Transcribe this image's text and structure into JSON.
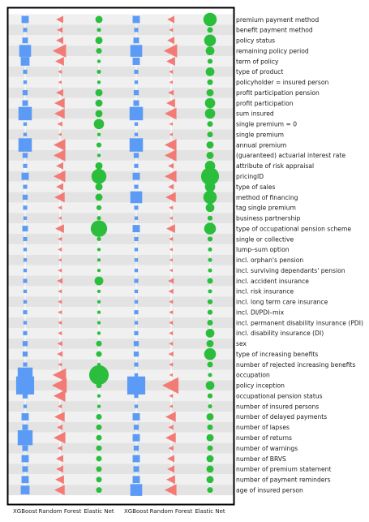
{
  "chart_data": {
    "type": "scatter",
    "title": "",
    "xlabel": "",
    "ylabel": "",
    "columns": [
      "XGBoost",
      "Random Forest",
      "Elastic Net",
      "XGBoost",
      "Random Forest",
      "Elastic Net"
    ],
    "column_colors": [
      "#5b9bf5",
      "#f27b76",
      "#2bbd3c",
      "#5b9bf5",
      "#f27b76",
      "#2bbd3c"
    ],
    "column_markers": [
      "square",
      "triangle-left",
      "circle",
      "square",
      "triangle-left",
      "circle"
    ],
    "value_scale": "relative importance, 0-10 (marker size)",
    "features": [
      "premium payment method",
      "benefit payment method",
      "policy status",
      "remaining policy period",
      "term of policy",
      "type of product",
      "policyholder = insured person",
      "profit participation pension",
      "profit participation",
      "sum insured",
      "single premium = 0",
      "single premium",
      "annual premium",
      "(guaranteed) actuarial interest rate",
      "attribute of risk appraisal",
      "pricingID",
      "type of sales",
      "method of financing",
      "tag single premium",
      "business partnership",
      "type of occupational pension scheme",
      "single or collective",
      "lump–sum option",
      "incl. orphan's pension",
      "incl. surviving dependants' pension",
      "incl. accident insurance",
      "incl. risk insurance",
      "incl. long term care insurance",
      "incl. DI/PDI–mix",
      "incl. permanent disability insurance (PDI)",
      "incl. disability insurance (DI)",
      "sex",
      "type of increasing benefits",
      "number of rejected increasing benefits",
      "occupation",
      "policy inception",
      "occupational pension status",
      "number of insured persons",
      "number of delayed payments",
      "number of lapses",
      "number of returns",
      "number of warnings",
      "number of BRVS",
      "number of premium statement",
      "number of payment reminders",
      "age of insured person"
    ],
    "values": [
      [
        1.5,
        1.5,
        1.5,
        1.5,
        1.5,
        3.5
      ],
      [
        0.5,
        1.0,
        0.5,
        0.5,
        0.5,
        1.0
      ],
      [
        1.0,
        1.5,
        1.5,
        1.0,
        1.5,
        3.0
      ],
      [
        3.0,
        3.5,
        1.0,
        3.0,
        3.5,
        2.0
      ],
      [
        2.0,
        2.0,
        0.3,
        1.5,
        2.0,
        0.8
      ],
      [
        0.5,
        0.5,
        0.5,
        0.5,
        0.5,
        2.0
      ],
      [
        0.3,
        0.3,
        0.3,
        0.3,
        0.3,
        1.0
      ],
      [
        0.8,
        1.5,
        1.5,
        0.8,
        1.0,
        1.5
      ],
      [
        1.0,
        2.5,
        1.5,
        1.0,
        2.0,
        2.5
      ],
      [
        3.5,
        2.5,
        1.5,
        3.5,
        3.0,
        2.5
      ],
      [
        0.3,
        0.8,
        2.5,
        0.3,
        0.3,
        1.0
      ],
      [
        0.3,
        0.3,
        0.3,
        0.3,
        0.3,
        1.0
      ],
      [
        3.5,
        3.0,
        0.8,
        3.5,
        3.0,
        1.5
      ],
      [
        0.8,
        3.0,
        0.3,
        0.8,
        3.0,
        1.5
      ],
      [
        0.5,
        1.5,
        1.5,
        0.5,
        1.0,
        2.5
      ],
      [
        1.5,
        3.0,
        4.0,
        1.5,
        3.0,
        5.0
      ],
      [
        0.5,
        1.5,
        1.5,
        0.5,
        1.0,
        2.5
      ],
      [
        0.8,
        2.5,
        1.5,
        3.0,
        2.5,
        3.5
      ],
      [
        0.5,
        0.5,
        0.8,
        0.5,
        0.5,
        2.0
      ],
      [
        0.3,
        0.3,
        0.5,
        0.3,
        0.3,
        0.8
      ],
      [
        1.0,
        2.0,
        4.5,
        1.5,
        2.0,
        3.0
      ],
      [
        0.5,
        0.5,
        0.5,
        0.5,
        0.5,
        0.8
      ],
      [
        0.3,
        0.5,
        0.3,
        0.3,
        0.3,
        0.5
      ],
      [
        0.3,
        0.3,
        0.3,
        0.3,
        0.3,
        0.5
      ],
      [
        0.3,
        0.5,
        0.3,
        0.3,
        0.3,
        0.5
      ],
      [
        0.5,
        1.0,
        2.0,
        0.5,
        1.0,
        1.0
      ],
      [
        0.3,
        0.5,
        0.3,
        0.3,
        0.8,
        0.5
      ],
      [
        0.3,
        0.5,
        0.3,
        0.3,
        0.5,
        0.8
      ],
      [
        0.5,
        0.5,
        0.3,
        0.5,
        0.5,
        0.8
      ],
      [
        0.3,
        0.5,
        0.3,
        0.3,
        0.5,
        1.0
      ],
      [
        0.5,
        0.5,
        0.3,
        0.5,
        0.5,
        2.0
      ],
      [
        0.8,
        0.8,
        1.0,
        0.8,
        0.5,
        1.5
      ],
      [
        0.8,
        1.0,
        1.0,
        0.8,
        0.8,
        3.0
      ],
      [
        0.5,
        0.5,
        0.3,
        0.5,
        0.5,
        1.0
      ],
      [
        4.0,
        3.5,
        5.5,
        0.3,
        0.3,
        0.5
      ],
      [
        5.0,
        4.0,
        1.0,
        5.0,
        4.5,
        2.0
      ],
      [
        0.8,
        3.0,
        0.3,
        0.5,
        0.5,
        0.8
      ],
      [
        0.3,
        0.5,
        0.3,
        0.3,
        0.3,
        0.5
      ],
      [
        1.5,
        2.5,
        1.0,
        1.5,
        2.5,
        1.5
      ],
      [
        1.0,
        1.0,
        1.0,
        0.8,
        0.8,
        1.0
      ],
      [
        4.0,
        3.0,
        1.0,
        1.5,
        2.5,
        1.5
      ],
      [
        1.0,
        0.8,
        1.0,
        0.8,
        0.8,
        1.0
      ],
      [
        1.5,
        1.5,
        1.0,
        1.5,
        1.5,
        1.5
      ],
      [
        1.0,
        1.5,
        1.0,
        1.0,
        1.5,
        1.5
      ],
      [
        1.5,
        2.0,
        1.0,
        1.5,
        2.0,
        1.5
      ],
      [
        2.0,
        2.5,
        1.0,
        3.0,
        3.0,
        1.0
      ]
    ],
    "grid": true,
    "legend": "none",
    "bands": {
      "light": "#f0f0f0",
      "dark": "#e3e3e3"
    },
    "frame_color": "#000000"
  }
}
